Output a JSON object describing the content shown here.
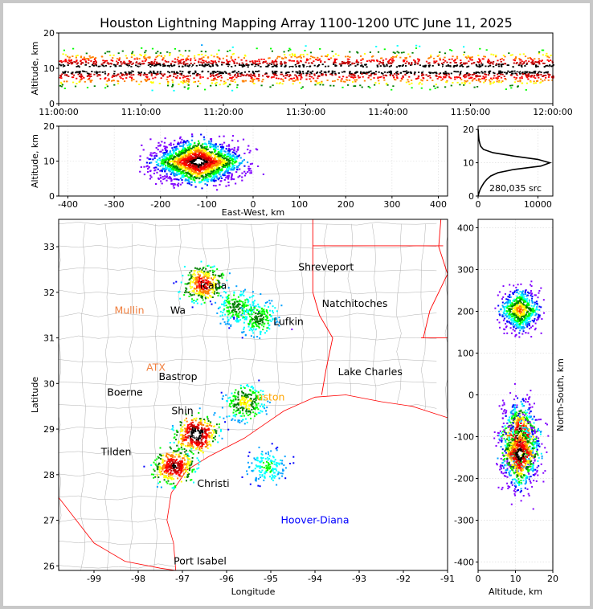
{
  "title": "Houston Lightning Mapping Array 1100-1200 UTC June 11, 2025",
  "colors": {
    "density_scale": [
      "#8000ff",
      "#0000ff",
      "#00a0ff",
      "#00ffff",
      "#00ff00",
      "#008000",
      "#ffff00",
      "#ff8000",
      "#ff0000",
      "#c00000",
      "#000000",
      "#ffffff",
      "#808080"
    ],
    "state_border": "#ff0000",
    "county_border": "#b0b0b0",
    "coast": "#ff0000"
  },
  "chart_data": [
    {
      "panel": "time-height",
      "type": "heatmap",
      "ylabel": "Altitude, km",
      "ylim": [
        0,
        20
      ],
      "yticks": [
        "0",
        "10",
        "20"
      ],
      "xlim": [
        "11:00:00",
        "12:00:00"
      ],
      "xticks": [
        "11:00:00",
        "11:10:00",
        "11:20:00",
        "11:30:00",
        "11:40:00",
        "11:50:00",
        "12:00:00"
      ],
      "peak_altitude_km": 10
    },
    {
      "panel": "east-west-height",
      "type": "heatmap",
      "xlabel": "East-West, km",
      "ylabel": "Altitude, km",
      "xlim": [
        -420,
        420
      ],
      "xticks": [
        "-400",
        "-300",
        "-200",
        "-100",
        "0",
        "100",
        "200",
        "300",
        "400"
      ],
      "ylim": [
        0,
        20
      ],
      "yticks": [
        "0",
        "10",
        "20"
      ],
      "core_east_west_km": -120,
      "core_altitude_km": 10
    },
    {
      "panel": "altitude-histogram",
      "type": "line",
      "xlim": [
        0,
        12500
      ],
      "xticks": [
        "0",
        "10000"
      ],
      "ylim": [
        0,
        21
      ],
      "yticks": [
        "0",
        "10",
        "20"
      ],
      "source_count_label": "280,035 src",
      "altitude_km": [
        0,
        1,
        2,
        3,
        4,
        5,
        6,
        7,
        8,
        9,
        10,
        11,
        12,
        13,
        14,
        15,
        16,
        17,
        18,
        19,
        20
      ],
      "counts": [
        0,
        150,
        350,
        650,
        1000,
        1450,
        2100,
        3300,
        6000,
        10500,
        12000,
        10000,
        6000,
        2500,
        900,
        420,
        250,
        140,
        80,
        40,
        15
      ]
    },
    {
      "panel": "plan-view",
      "type": "map",
      "xlabel": "Longitude",
      "ylabel": "Latitude",
      "xlim": [
        -99.8,
        -91
      ],
      "xticks": [
        "-99",
        "-98",
        "-97",
        "-96",
        "-95",
        "-94",
        "-93",
        "-92",
        "-91"
      ],
      "ylim": [
        25.9,
        33.6
      ],
      "yticks": [
        "26",
        "27",
        "28",
        "29",
        "30",
        "31",
        "32",
        "33"
      ],
      "cities": [
        {
          "name": "Shreveport",
          "lon": -93.75,
          "lat": 32.55,
          "color": "#000000"
        },
        {
          "name": "Texarkana",
          "lon": -96.3,
          "lat": 32.15,
          "color": "#000000",
          "display": "icana"
        },
        {
          "name": "Natchitoches",
          "lon": -93.1,
          "lat": 31.75,
          "color": "#000000"
        },
        {
          "name": "Mullin",
          "lon": -98.2,
          "lat": 31.6,
          "color": "#f08040"
        },
        {
          "name": "Waco",
          "lon": -97.1,
          "lat": 31.6,
          "color": "#000000",
          "display": "Wa"
        },
        {
          "name": "Lufkin",
          "lon": -94.6,
          "lat": 31.35,
          "color": "#000000"
        },
        {
          "name": "ATX",
          "lon": -97.6,
          "lat": 30.35,
          "color": "#f08040"
        },
        {
          "name": "Lake Charles",
          "lon": -92.75,
          "lat": 30.25,
          "color": "#000000"
        },
        {
          "name": "Bastrop",
          "lon": -97.1,
          "lat": 30.15,
          "color": "#000000"
        },
        {
          "name": "Boerne",
          "lon": -98.3,
          "lat": 29.8,
          "color": "#000000"
        },
        {
          "name": "Houston",
          "lon": -95.0,
          "lat": 29.7,
          "color": "#ffa500",
          "display": "uston"
        },
        {
          "name": "Shiner",
          "lon": -97.0,
          "lat": 29.4,
          "color": "#000000",
          "display": "Shin"
        },
        {
          "name": "Tilden",
          "lon": -98.5,
          "lat": 28.5,
          "color": "#000000"
        },
        {
          "name": "Corpus Christi",
          "lon": -96.3,
          "lat": 27.8,
          "color": "#000000",
          "display": "Christi"
        },
        {
          "name": "Hoover-Diana",
          "lon": -94.0,
          "lat": 27.0,
          "color": "#0000ff"
        },
        {
          "name": "Port Isabel",
          "lon": -96.6,
          "lat": 26.1,
          "color": "#000000"
        }
      ],
      "storm_cells": [
        {
          "lon": -96.55,
          "lat": 32.2,
          "intensity": 0.8
        },
        {
          "lon": -95.8,
          "lat": 31.7,
          "intensity": 0.5
        },
        {
          "lon": -95.3,
          "lat": 31.45,
          "intensity": 0.5
        },
        {
          "lon": -96.7,
          "lat": 28.9,
          "intensity": 1.0
        },
        {
          "lon": -97.2,
          "lat": 28.2,
          "intensity": 0.9
        },
        {
          "lon": -95.6,
          "lat": 29.6,
          "intensity": 0.6
        },
        {
          "lon": -95.1,
          "lat": 28.2,
          "intensity": 0.4
        }
      ]
    },
    {
      "panel": "north-south-height",
      "type": "heatmap",
      "xlabel": "Altitude, km",
      "ylabel": "North-South, km",
      "xlim": [
        0,
        20
      ],
      "xticks": [
        "0",
        "10",
        "20"
      ],
      "ylim": [
        -420,
        420
      ],
      "yticks": [
        "-400",
        "-300",
        "-200",
        "-100",
        "0",
        "100",
        "200",
        "300",
        "400"
      ],
      "cores": [
        {
          "north_south_km": 205,
          "altitude_km": 11
        },
        {
          "north_south_km": -95,
          "altitude_km": 11
        },
        {
          "north_south_km": -140,
          "altitude_km": 11
        }
      ]
    }
  ]
}
